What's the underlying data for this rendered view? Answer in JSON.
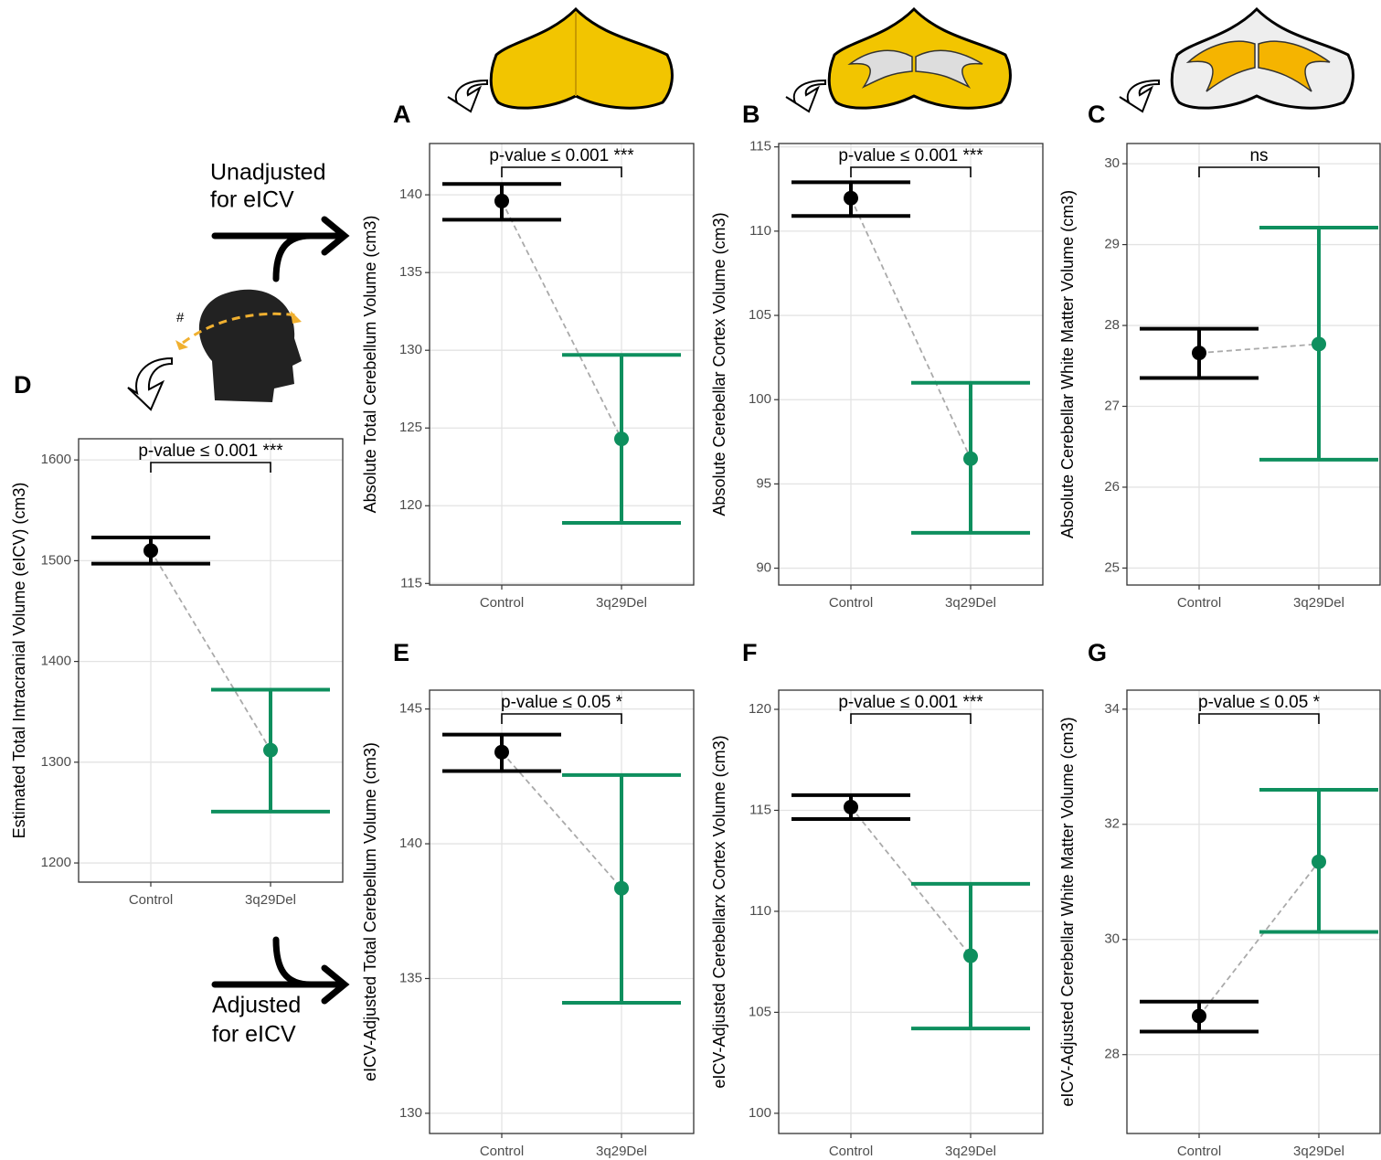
{
  "chart_data": [
    {
      "type": "errorbar",
      "panel": "A",
      "ylabel": "Absolute Total Cerebellum Volume (cm3)",
      "annotation": "p-value ≤ 0.001 ***",
      "categories": [
        "Control",
        "3q29Del"
      ],
      "values": [
        139.6,
        124.3
      ],
      "lower": [
        138.4,
        118.9
      ],
      "upper": [
        140.7,
        129.7
      ],
      "colors": [
        "#000000",
        "#0e8f5e"
      ],
      "ylim": [
        114.9,
        143.3
      ],
      "yticks": [
        115,
        120,
        125,
        130,
        135,
        140
      ],
      "grid": true
    },
    {
      "type": "errorbar",
      "panel": "B",
      "ylabel": "Absolute Cerebellar Cortex Volume (cm3)",
      "annotation": "p-value ≤ 0.001 ***",
      "categories": [
        "Control",
        "3q29Del"
      ],
      "values": [
        111.96,
        96.5
      ],
      "lower": [
        110.9,
        92.1
      ],
      "upper": [
        112.9,
        101.0
      ],
      "colors": [
        "#000000",
        "#0e8f5e"
      ],
      "ylim": [
        89.0,
        115.2
      ],
      "yticks": [
        90,
        95,
        100,
        105,
        110,
        115
      ],
      "grid": true
    },
    {
      "type": "errorbar",
      "panel": "C",
      "ylabel": "Absolute Cerebellar White Matter Volume (cm3)",
      "annotation": "ns",
      "categories": [
        "Control",
        "3q29Del"
      ],
      "values": [
        27.66,
        27.77
      ],
      "lower": [
        27.35,
        26.34
      ],
      "upper": [
        27.96,
        29.21
      ],
      "colors": [
        "#000000",
        "#0e8f5e"
      ],
      "ylim": [
        24.79,
        30.25
      ],
      "yticks": [
        25,
        26,
        27,
        28,
        29,
        30
      ],
      "grid": true
    },
    {
      "type": "errorbar",
      "panel": "D",
      "ylabel": "Estimated Total Intracranial Volume (eICV) (cm3)",
      "annotation": "p-value ≤ 0.001 ***",
      "categories": [
        "Control",
        "3q29Del"
      ],
      "values": [
        1510,
        1312
      ],
      "lower": [
        1497,
        1251
      ],
      "upper": [
        1523,
        1372
      ],
      "colors": [
        "#000000",
        "#0e8f5e"
      ],
      "ylim": [
        1181,
        1621
      ],
      "yticks": [
        1200,
        1300,
        1400,
        1500,
        1600
      ],
      "grid": true
    },
    {
      "type": "errorbar",
      "panel": "E",
      "ylabel": "eICV-Adjusted Total Cerebellum Volume (cm3)",
      "annotation": "p-value ≤ 0.05 *",
      "categories": [
        "Control",
        "3q29Del"
      ],
      "values": [
        143.4,
        138.35
      ],
      "lower": [
        142.7,
        134.1
      ],
      "upper": [
        144.05,
        142.55
      ],
      "colors": [
        "#000000",
        "#0e8f5e"
      ],
      "ylim": [
        129.25,
        145.7
      ],
      "yticks": [
        130,
        135,
        140,
        145
      ],
      "grid": true
    },
    {
      "type": "errorbar",
      "panel": "F",
      "ylabel": "eICV-Adjusted Cerebellarx Cortex Volume (cm3)",
      "annotation": "p-value ≤ 0.001 ***",
      "categories": [
        "Control",
        "3q29Del"
      ],
      "values": [
        115.16,
        107.8
      ],
      "lower": [
        114.57,
        104.2
      ],
      "upper": [
        115.75,
        111.36
      ],
      "colors": [
        "#000000",
        "#0e8f5e"
      ],
      "ylim": [
        99.0,
        120.95
      ],
      "yticks": [
        100,
        105,
        110,
        115,
        120
      ],
      "grid": true
    },
    {
      "type": "errorbar",
      "panel": "G",
      "ylabel": "eICV-Adjusted Cerebellar White Matter Volume (cm3)",
      "annotation": "p-value ≤ 0.05 *",
      "categories": [
        "Control",
        "3q29Del"
      ],
      "values": [
        28.67,
        31.35
      ],
      "lower": [
        28.4,
        30.13
      ],
      "upper": [
        28.92,
        32.6
      ],
      "colors": [
        "#000000",
        "#0e8f5e"
      ],
      "ylim": [
        26.63,
        34.33
      ],
      "yticks": [
        28,
        30,
        32,
        34
      ],
      "grid": true
    }
  ],
  "annotations": {
    "unadjusted": [
      "Unadjusted",
      "for eICV"
    ],
    "adjusted": [
      "Adjusted",
      "for eICV"
    ],
    "hash": "#"
  }
}
